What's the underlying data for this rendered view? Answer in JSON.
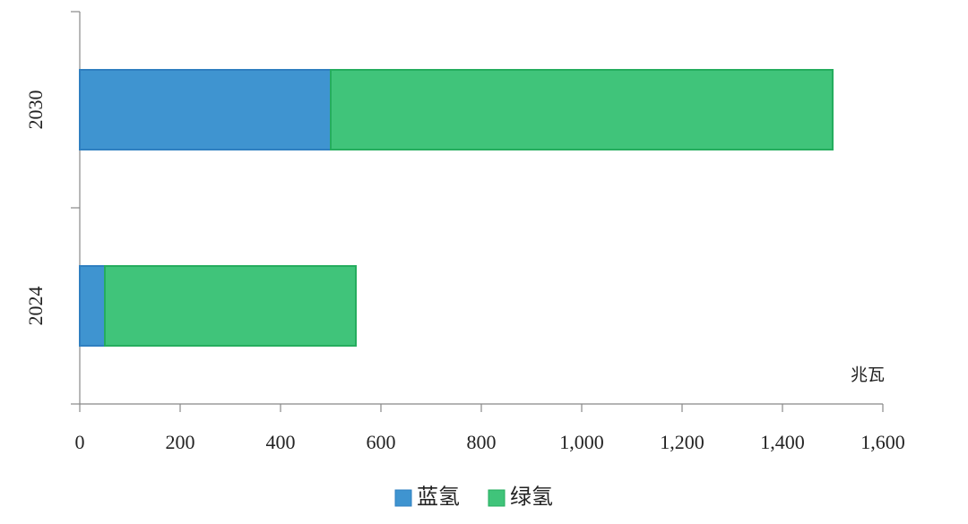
{
  "chart_data": {
    "type": "stacked-bar-horizontal",
    "categories": [
      "2024",
      "2030"
    ],
    "series": [
      {
        "name": "蓝氢",
        "color": "#3f94d0",
        "values": [
          50,
          500
        ]
      },
      {
        "name": "绿氢",
        "color": "#40c47a",
        "values": [
          500,
          1000
        ]
      }
    ],
    "xlim": [
      0,
      1600
    ],
    "xticks": [
      0,
      200,
      400,
      600,
      800,
      {
        "value": 1000,
        "label": "1,000"
      },
      {
        "value": 1200,
        "label": "1,200"
      },
      {
        "value": 1400,
        "label": "1,400"
      },
      {
        "value": 1600,
        "label": "1,600"
      }
    ],
    "x_unit": "兆瓦",
    "legend": "bottom"
  }
}
